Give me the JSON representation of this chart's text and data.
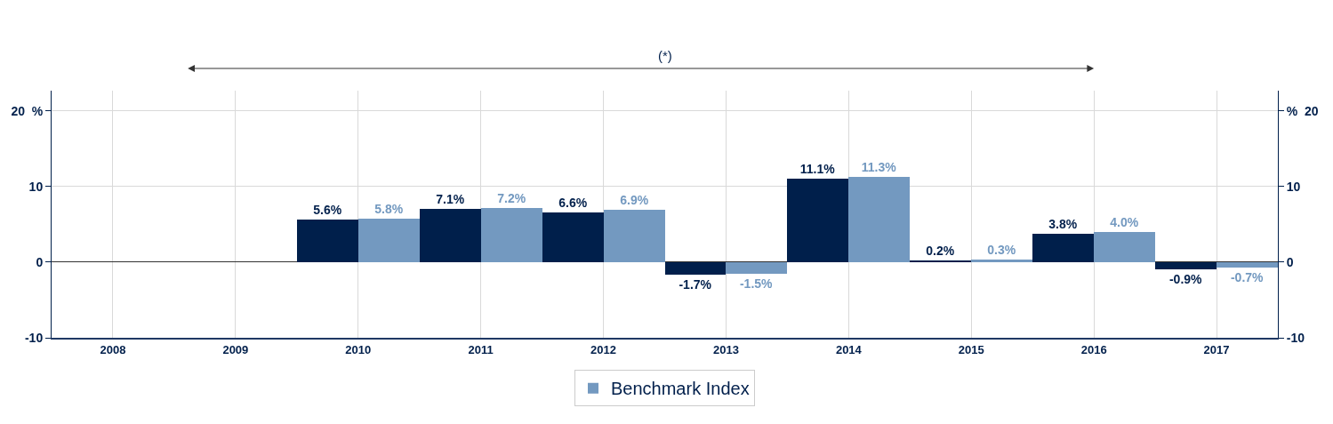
{
  "chart_data": {
    "type": "bar",
    "annotations": [
      "(*)"
    ],
    "categories": [
      "2008",
      "2009",
      "2010",
      "2011",
      "2012",
      "2013",
      "2014",
      "2015",
      "2016",
      "2017"
    ],
    "series": [
      {
        "color": "#001f4b",
        "values": [
          null,
          null,
          5.6,
          7.1,
          6.6,
          -1.7,
          11.1,
          0.2,
          3.8,
          -0.9
        ],
        "value_labels": [
          null,
          null,
          "5.6%",
          "7.1%",
          "6.6%",
          "-1.7%",
          "11.1%",
          "0.2%",
          "3.8%",
          "-0.9%"
        ]
      },
      {
        "name": "Benchmark Index",
        "color": "#7399c0",
        "values": [
          null,
          null,
          5.8,
          7.2,
          6.9,
          -1.5,
          11.3,
          0.3,
          4.0,
          -0.7
        ],
        "value_labels": [
          null,
          null,
          "5.8%",
          "7.2%",
          "6.9%",
          "-1.5%",
          "11.3%",
          "0.3%",
          "4.0%",
          "-0.7%"
        ]
      }
    ],
    "ylim": [
      -10,
      22.7
    ],
    "yticks": [
      -10,
      0,
      10,
      {
        "value": 20,
        "label": "20  %"
      }
    ],
    "y2lim": [
      -10,
      22.7
    ],
    "y2ticks": [
      -10,
      0,
      10,
      {
        "value": 20,
        "label": "%  20"
      }
    ],
    "grid": true,
    "legend": "bottom"
  }
}
